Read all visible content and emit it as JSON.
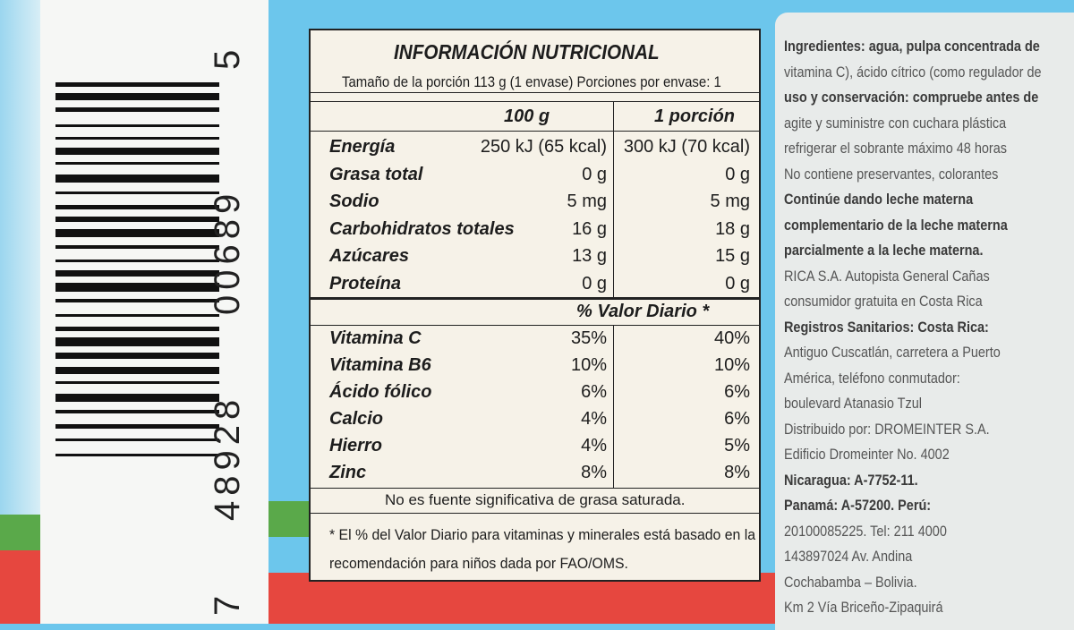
{
  "barcode": {
    "digits": [
      "7",
      "48928",
      "00689",
      "5"
    ]
  },
  "label": {
    "title": "INFORMACIÓN NUTRICIONAL",
    "serving": "Tamaño de la porción 113 g (1 envase)  Porciones por envase: 1",
    "columns": [
      "100 g",
      "1 porción"
    ],
    "nutrients": [
      {
        "name": "Energía",
        "per100": "250 kJ (65 kcal)",
        "portion": "300 kJ (70 kcal)"
      },
      {
        "name": "Grasa total",
        "per100": "0 g",
        "portion": "0 g"
      },
      {
        "name": "Sodio",
        "per100": "5 mg",
        "portion": "5 mg"
      },
      {
        "name": "Carbohidratos totales",
        "per100": "16 g",
        "portion": "18 g"
      },
      {
        "name": "Azúcares",
        "per100": "13 g",
        "portion": "15 g"
      },
      {
        "name": "Proteína",
        "per100": "0 g",
        "portion": "0 g"
      }
    ],
    "daily_value_header": "% Valor Diario *",
    "vitamins": [
      {
        "name": "Vitamina C",
        "per100": "35%",
        "portion": "40%"
      },
      {
        "name": "Vitamina B6",
        "per100": "10%",
        "portion": "10%"
      },
      {
        "name": "Ácido fólico",
        "per100": "6%",
        "portion": "6%"
      },
      {
        "name": "Calcio",
        "per100": "4%",
        "portion": "6%"
      },
      {
        "name": "Hierro",
        "per100": "4%",
        "portion": "5%"
      },
      {
        "name": "Zinc",
        "per100": "8%",
        "portion": "8%"
      }
    ],
    "note": "No es fuente significativa de grasa saturada.",
    "footnote": [
      "* El % del Valor Diario para vitaminas y minerales está basado en la",
      "recomendación para niños dada por FAO/OMS."
    ]
  },
  "side_text": [
    "Ingredientes: agua, pulpa concentrada de",
    "vitamina C), ácido cítrico (como regulador de",
    "uso y conservación: compruebe antes de",
    "agite y suministre con cuchara plástica",
    "refrigerar el sobrante máximo 48 horas",
    "No contiene preservantes, colorantes",
    "Continúe dando leche materna",
    "complementario de la leche materna",
    "parcialmente a la leche materna.",
    "RICA S.A. Autopista General Cañas",
    "consumidor gratuita en Costa Rica",
    "Registros Sanitarios: Costa Rica:",
    "Antiguo Cuscatlán, carretera a Puerto",
    "América, teléfono conmutador:",
    "boulevard Atanasio Tzul",
    "Distribuido por: DROMEINTER S.A.",
    "Edificio Dromeinter No. 4002",
    "Nicaragua: A-7752-11.",
    "Panamá: A-57200. Perú:",
    "20100085225. Tel: 211 4000",
    "143897024 Av. Andina",
    "Cochabamba – Bolivia.",
    "Km 2 Vía Briceño-Zipaquirá"
  ]
}
